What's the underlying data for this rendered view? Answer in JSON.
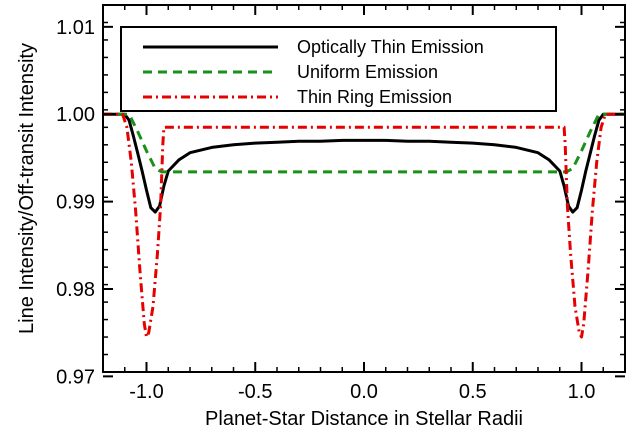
{
  "chart_data": {
    "type": "line",
    "title": "",
    "xlabel": "Planet-Star Distance in Stellar Radii",
    "ylabel": "Line Intensity/Off-transit Intensity",
    "xlim": [
      -1.2,
      1.2
    ],
    "ylim": [
      0.9705,
      1.0125
    ],
    "x_ticks": [
      -1.0,
      -0.5,
      0.0,
      0.5,
      1.0
    ],
    "x_tick_labels": [
      "-1.0",
      "-0.5",
      "0.0",
      "0.5",
      "1.0"
    ],
    "y_ticks": [
      0.97,
      0.98,
      0.99,
      1.0,
      1.01
    ],
    "y_tick_labels": [
      "0.97",
      "0.98",
      "0.99",
      "1.00",
      "1.01"
    ],
    "grid": false,
    "legend_position": "top-center",
    "series": [
      {
        "name": "Optically Thin Emission",
        "color": "#000000",
        "style": "solid",
        "x": [
          -1.2,
          -1.1,
          -1.08,
          -1.06,
          -1.04,
          -1.02,
          -1.0,
          -0.98,
          -0.96,
          -0.94,
          -0.92,
          -0.9,
          -0.85,
          -0.8,
          -0.7,
          -0.6,
          -0.5,
          -0.4,
          -0.3,
          -0.2,
          -0.1,
          0.0,
          0.1,
          0.2,
          0.3,
          0.4,
          0.5,
          0.6,
          0.7,
          0.8,
          0.85,
          0.9,
          0.92,
          0.94,
          0.96,
          0.98,
          1.0,
          1.02,
          1.04,
          1.06,
          1.08,
          1.1,
          1.2
        ],
        "y": [
          1.0,
          1.0,
          0.9993,
          0.9975,
          0.9955,
          0.9935,
          0.9913,
          0.9893,
          0.9888,
          0.9895,
          0.9918,
          0.9935,
          0.9948,
          0.9956,
          0.9962,
          0.9965,
          0.9967,
          0.9968,
          0.9969,
          0.9969,
          0.997,
          0.997,
          0.997,
          0.9969,
          0.9969,
          0.9968,
          0.9967,
          0.9965,
          0.9962,
          0.9956,
          0.9948,
          0.9935,
          0.9918,
          0.9895,
          0.9888,
          0.9893,
          0.9913,
          0.9935,
          0.9955,
          0.9975,
          0.9993,
          1.0,
          1.0
        ]
      },
      {
        "name": "Uniform Emission",
        "color": "#1a8f1a",
        "style": "dashed",
        "x": [
          -1.2,
          -1.08,
          -1.04,
          -1.0,
          -0.96,
          -0.93,
          -0.9,
          -0.5,
          0.0,
          0.5,
          0.9,
          0.93,
          0.96,
          1.0,
          1.04,
          1.08,
          1.2
        ],
        "y": [
          1.0,
          1.0,
          0.998,
          0.9958,
          0.9938,
          0.9934,
          0.9934,
          0.9934,
          0.9934,
          0.9934,
          0.9934,
          0.9934,
          0.9938,
          0.9958,
          0.998,
          1.0,
          1.0
        ]
      },
      {
        "name": "Thin Ring Emission",
        "color": "#e60000",
        "style": "dashdot",
        "x": [
          -1.2,
          -1.11,
          -1.09,
          -1.07,
          -1.05,
          -1.03,
          -1.01,
          -1.0,
          -0.99,
          -0.97,
          -0.95,
          -0.935,
          -0.925,
          -0.92,
          -0.5,
          0.0,
          0.5,
          0.92,
          0.925,
          0.935,
          0.95,
          0.97,
          0.99,
          1.0,
          1.01,
          1.03,
          1.05,
          1.07,
          1.09,
          1.11,
          1.2
        ],
        "y": [
          1.0,
          1.0,
          0.9985,
          0.9945,
          0.989,
          0.982,
          0.976,
          0.9745,
          0.975,
          0.978,
          0.984,
          0.9895,
          0.9965,
          0.9985,
          0.9985,
          0.9985,
          0.9985,
          0.9985,
          0.9965,
          0.9895,
          0.984,
          0.978,
          0.975,
          0.9745,
          0.976,
          0.982,
          0.989,
          0.9945,
          0.9985,
          1.0,
          1.0
        ]
      }
    ]
  }
}
